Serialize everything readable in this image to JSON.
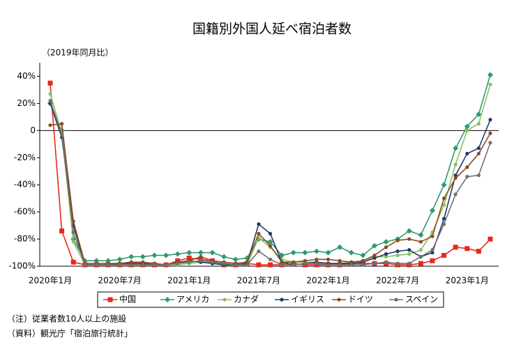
{
  "chart_data": {
    "type": "line",
    "title": "国籍別外国人延べ宿泊者数",
    "subtitle": "（2019年同月比）",
    "notes": [
      "（注）従業者数10人以上の施設",
      "（資料）観光庁「宿泊旅行統計」"
    ],
    "categories": [
      "2020年1月",
      null,
      null,
      null,
      null,
      null,
      "2020年7月",
      null,
      null,
      null,
      null,
      null,
      "2021年1月",
      null,
      null,
      null,
      null,
      null,
      "2021年7月",
      null,
      null,
      null,
      null,
      null,
      "2022年1月",
      null,
      null,
      null,
      null,
      null,
      "2022年7月",
      null,
      null,
      null,
      null,
      null,
      "2023年1月",
      null,
      null
    ],
    "ylim": [
      -100,
      50
    ],
    "yticks": [
      {
        "value": -100,
        "label": "-100%"
      },
      {
        "value": -80,
        "label": "-80%"
      },
      {
        "value": -60,
        "label": "-60%"
      },
      {
        "value": -40,
        "label": "-40%"
      },
      {
        "value": -20,
        "label": "-20%"
      },
      0,
      {
        "value": 20,
        "label": "20%"
      },
      {
        "value": 40,
        "label": "40%"
      }
    ],
    "legend": "bottom",
    "series": [
      {
        "name": "中国",
        "color": "#e8281c",
        "marker": "square",
        "values": [
          35,
          -74,
          -97,
          -99,
          -99,
          -99,
          -99,
          -99,
          -99,
          -99,
          -99,
          -96,
          -94,
          -95,
          -96,
          -99,
          -99,
          -98,
          -99,
          -99,
          -99,
          -98,
          -99,
          -99,
          -99,
          -99,
          -98,
          -98,
          -98,
          -98,
          -99,
          -99,
          -98,
          -96,
          -92,
          -86,
          -87,
          -89,
          -80
        ]
      },
      {
        "name": "アメリカ",
        "color": "#2e9a6b",
        "marker": "diamond",
        "values": [
          20,
          0,
          -80,
          -96,
          -96,
          -96,
          -95,
          -93,
          -93,
          -92,
          -92,
          -91,
          -90,
          -90,
          -90,
          -93,
          -95,
          -94,
          -80,
          -82,
          -92,
          -90,
          -90,
          -89,
          -90,
          -86,
          -90,
          -92,
          -85,
          -82,
          -80,
          -74,
          -77,
          -59,
          -40,
          -13,
          3,
          12,
          41
        ]
      },
      {
        "name": "カナダ",
        "color": "#8cc060",
        "marker": "circle",
        "values": [
          27,
          -2,
          -82,
          -99,
          -99,
          -99,
          -98,
          -98,
          -98,
          -98,
          -99,
          -99,
          -98,
          -97,
          -98,
          -99,
          -99,
          -99,
          -79,
          -86,
          -95,
          -97,
          -97,
          -97,
          -98,
          -98,
          -97,
          -96,
          -93,
          -93,
          -92,
          -91,
          -88,
          -75,
          -55,
          -25,
          0,
          5,
          34
        ]
      },
      {
        "name": "イギリス",
        "color": "#1f3a6e",
        "marker": "circle",
        "values": [
          20,
          -5,
          -70,
          -99,
          -99,
          -99,
          -98,
          -98,
          -98,
          -99,
          -99,
          -98,
          -96,
          -97,
          -98,
          -99,
          -99,
          -98,
          -69,
          -76,
          -97,
          -99,
          -98,
          -97,
          -98,
          -98,
          -98,
          -97,
          -94,
          -91,
          -89,
          -88,
          -93,
          -90,
          -65,
          -33,
          -17,
          -13,
          8
        ]
      },
      {
        "name": "ドイツ",
        "color": "#8b4a1e",
        "marker": "circle",
        "values": [
          4,
          5,
          -67,
          -98,
          -98,
          -98,
          -98,
          -97,
          -97,
          -98,
          -99,
          -97,
          -96,
          -93,
          -96,
          -97,
          -98,
          -97,
          -76,
          -85,
          -97,
          -97,
          -96,
          -95,
          -95,
          -96,
          -97,
          -96,
          -92,
          -86,
          -81,
          -80,
          -82,
          -78,
          -50,
          -35,
          -27,
          -17,
          -2
        ]
      },
      {
        "name": "スペイン",
        "color": "#707070",
        "marker": "circle",
        "values": [
          22,
          -3,
          -75,
          -99,
          -99,
          -99,
          -99,
          -99,
          -99,
          -99,
          -99,
          -98,
          -97,
          -96,
          -97,
          -98,
          -99,
          -99,
          -89,
          -95,
          -99,
          -99,
          -98,
          -98,
          -99,
          -99,
          -99,
          -99,
          -98,
          -97,
          -98,
          -98,
          -93,
          -88,
          -69,
          -47,
          -34,
          -33,
          -9
        ]
      }
    ]
  }
}
